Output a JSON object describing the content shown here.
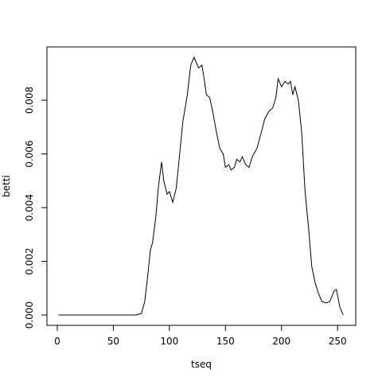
{
  "chart_data": {
    "type": "line",
    "x_label": "tseq",
    "y_label": "betti",
    "x": [
      1,
      70,
      75,
      78,
      80,
      83,
      85,
      88,
      90,
      93,
      95,
      98,
      100,
      103,
      106,
      108,
      112,
      116,
      119,
      122,
      124,
      126,
      129,
      131,
      133,
      136,
      139,
      142,
      145,
      148,
      150,
      153,
      155,
      158,
      160,
      163,
      165,
      168,
      171,
      174,
      178,
      182,
      185,
      189,
      192,
      195,
      197,
      200,
      203,
      206,
      208,
      210,
      212,
      215,
      218,
      221,
      224,
      227,
      230,
      233,
      236,
      240,
      243,
      247,
      249,
      252,
      255
    ],
    "values": [
      0,
      0,
      5e-05,
      0.0005,
      0.0012,
      0.0024,
      0.0027,
      0.0037,
      0.0047,
      0.0057,
      0.005,
      0.0045,
      0.0046,
      0.0042,
      0.0047,
      0.0055,
      0.0072,
      0.0082,
      0.0093,
      0.0096,
      0.0094,
      0.0092,
      0.0093,
      0.0088,
      0.0082,
      0.0081,
      0.0075,
      0.0068,
      0.0062,
      0.006,
      0.0055,
      0.0056,
      0.0054,
      0.0055,
      0.0058,
      0.0057,
      0.0059,
      0.0056,
      0.0055,
      0.0059,
      0.0062,
      0.0068,
      0.0073,
      0.0076,
      0.0077,
      0.0081,
      0.0088,
      0.0085,
      0.0087,
      0.0086,
      0.0087,
      0.0082,
      0.0085,
      0.008,
      0.0068,
      0.0046,
      0.0033,
      0.0018,
      0.0012,
      0.0008,
      0.0005,
      0.00045,
      0.0005,
      0.0009,
      0.00095,
      0.0003,
      0
    ],
    "color": "#000000",
    "xlim": [
      -9.2,
      266.2
    ],
    "ylim": [
      -0.000384,
      0.009984
    ],
    "xticks": [
      0,
      50,
      100,
      150,
      200,
      250
    ],
    "yticks": [
      {
        "value": 0,
        "label": "0.000"
      },
      {
        "value": 0.002,
        "label": "0.002"
      },
      {
        "value": 0.004,
        "label": "0.004"
      },
      {
        "value": 0.006,
        "label": "0.006"
      },
      {
        "value": 0.008,
        "label": "0.008"
      }
    ]
  }
}
